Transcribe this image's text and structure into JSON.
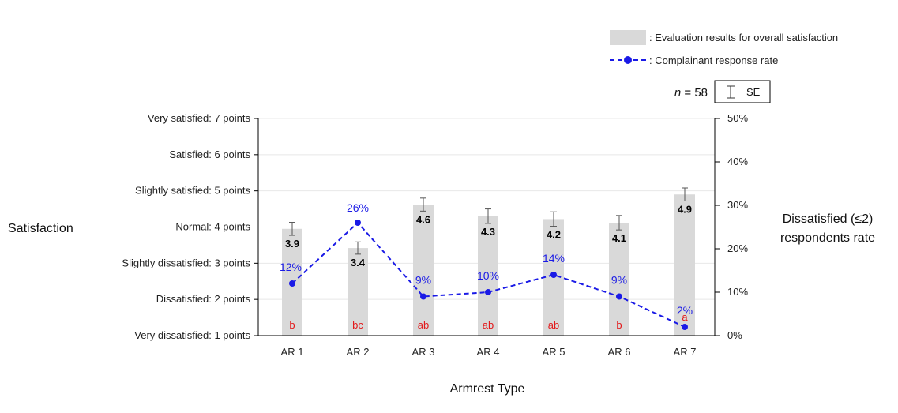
{
  "chart_data": {
    "type": "bar",
    "sample_size_label": "n",
    "sample_size_value": "= 58",
    "se_legend_label": "SE",
    "xlabel": "Armrest Type",
    "ylabel_left": "Satisfaction",
    "ylabel_right_lines": [
      "Dissatisfied (≤2)",
      "respondents rate"
    ],
    "legend": {
      "bar_label": ": Evaluation results for overall satisfaction",
      "line_label": ": Complainant response rate"
    },
    "y_left": {
      "range": [
        1,
        7
      ],
      "ticks": [
        {
          "value": 7,
          "label": "Very satisfied: 7 points"
        },
        {
          "value": 6,
          "label": "Satisfied: 6 points"
        },
        {
          "value": 5,
          "label": "Slightly satisfied: 5 points"
        },
        {
          "value": 4,
          "label": "Normal: 4 points"
        },
        {
          "value": 3,
          "label": "Slightly dissatisfied: 3 points"
        },
        {
          "value": 2,
          "label": "Dissatisfied: 2 points"
        },
        {
          "value": 1,
          "label": "Very dissatisfied: 1 points"
        }
      ]
    },
    "y_right": {
      "range": [
        0,
        50
      ],
      "ticks": [
        {
          "value": 50,
          "label": "50%"
        },
        {
          "value": 40,
          "label": "40%"
        },
        {
          "value": 30,
          "label": "30%"
        },
        {
          "value": 20,
          "label": "20%"
        },
        {
          "value": 10,
          "label": "10%"
        },
        {
          "value": 0,
          "label": "0%"
        }
      ]
    },
    "categories": [
      "AR 1",
      "AR 2",
      "AR 3",
      "AR 4",
      "AR 5",
      "AR 6",
      "AR 7"
    ],
    "series": [
      {
        "name": "Evaluation results for overall satisfaction",
        "type": "bar",
        "axis": "left",
        "values": [
          3.95,
          3.42,
          4.62,
          4.3,
          4.22,
          4.12,
          4.9
        ],
        "value_labels": [
          "3.9",
          "3.4",
          "4.6",
          "4.3",
          "4.2",
          "4.1",
          "4.9"
        ],
        "se": [
          0.18,
          0.17,
          0.18,
          0.2,
          0.2,
          0.2,
          0.18
        ],
        "significance_letters": [
          "b",
          "bc",
          "ab",
          "ab",
          "ab",
          "b",
          "a"
        ]
      },
      {
        "name": "Complainant response rate",
        "type": "line",
        "axis": "right",
        "values": [
          12,
          26,
          9,
          10,
          14,
          9,
          2
        ],
        "value_labels": [
          "12%",
          "26%",
          "9%",
          "10%",
          "14%",
          "9%",
          "2%"
        ]
      }
    ],
    "colors": {
      "bar": "#d9d9d9",
      "line": "#1a1ae6",
      "line_label": "#1a1ae6",
      "significance": "#e31a1c",
      "bar_label": "#000000",
      "axis": "#000000",
      "grid": "#e8e8e8",
      "errorbar": "#555555"
    },
    "grid": true
  }
}
